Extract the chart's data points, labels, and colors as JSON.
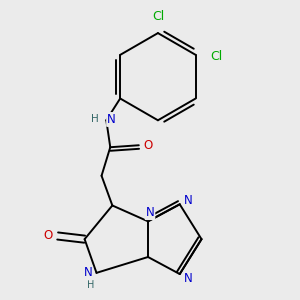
{
  "background_color": "#ebebeb",
  "bond_color": "#000000",
  "atom_colors": {
    "N": "#0000cc",
    "O": "#cc0000",
    "Cl": "#00aa00",
    "H": "#336666",
    "C": "#000000"
  },
  "font_size_atoms": 8.5
}
